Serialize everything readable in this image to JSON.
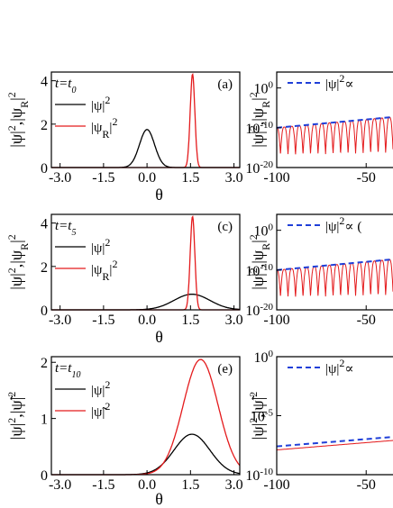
{
  "chart_data": [
    {
      "type": "line",
      "panel": "(a)",
      "time_label": "t=t",
      "time_sub": "0",
      "xlabel": "θ",
      "ylabel": "|ψ|²,|ψR|²",
      "xlim": [
        -3.3,
        3.2
      ],
      "ylim": [
        0,
        4.4
      ],
      "xticks": [
        "-3.0",
        "-1.5",
        "0.0",
        "1.5",
        "3.0"
      ],
      "yticks": [
        "0",
        "2",
        "4"
      ],
      "series": [
        {
          "name": "|ψ|²",
          "color": "#000000",
          "center": 0.0,
          "peak": 1.75,
          "sigma": 0.26
        },
        {
          "name": "|ψR|²",
          "color": "#e41a1c",
          "center": 1.57,
          "peak": 4.3,
          "sigma": 0.08
        }
      ]
    },
    {
      "type": "line",
      "panel": "(c)",
      "time_label": "t=t",
      "time_sub": "5",
      "xlabel": "θ",
      "ylabel": "|ψ|²,|ψR|²",
      "xlim": [
        -3.3,
        3.2
      ],
      "ylim": [
        0,
        4.4
      ],
      "xticks": [
        "-3.0",
        "-1.5",
        "0.0",
        "1.5",
        "3.0"
      ],
      "yticks": [
        "0",
        "2",
        "4"
      ],
      "series": [
        {
          "name": "|ψ|²",
          "color": "#000000",
          "center": 1.55,
          "peak": 0.72,
          "sigma": 0.62
        },
        {
          "name": "|ψR|²",
          "color": "#e41a1c",
          "center": 1.57,
          "peak": 4.3,
          "sigma": 0.08
        }
      ]
    },
    {
      "type": "line",
      "panel": "(e)",
      "time_label": "t=t",
      "time_sub": "10",
      "xlabel": "θ",
      "ylabel": "|ψ|²,|ψ̃|²",
      "xlim": [
        -3.3,
        3.2
      ],
      "ylim": [
        0,
        2.1
      ],
      "xticks": [
        "-3.0",
        "-1.5",
        "0.0",
        "1.5",
        "3.0"
      ],
      "yticks": [
        "0",
        "1",
        "2"
      ],
      "series": [
        {
          "name": "|ψ|²",
          "color": "#000000",
          "center": 1.55,
          "peak": 0.72,
          "sigma": 0.62
        },
        {
          "name": "|ψ̃|²",
          "color": "#e41a1c",
          "center": 1.85,
          "peak": 2.05,
          "sigma": 0.6
        }
      ]
    },
    {
      "type": "line",
      "ylabel": "|ψ|²,|ψR|²",
      "yscale": "log",
      "xlim": [
        -100,
        -35
      ],
      "ylim": [
        1e-20,
        10000.0
      ],
      "xticks": [
        "-100",
        "-50"
      ],
      "yticks": [
        "10",
        "10",
        "10"
      ],
      "ytick_exp": [
        "0",
        "-10",
        "-20"
      ],
      "legend": "|ψ|²∝",
      "dashed_level_exp": 0,
      "envelope_exp": [
        -10,
        -7.3
      ],
      "dip_exp": -18
    },
    {
      "type": "line",
      "ylabel": "|ψ|²,|ψR|²",
      "yscale": "log",
      "xlim": [
        -100,
        -35
      ],
      "ylim": [
        1e-20,
        10000.0
      ],
      "xticks": [
        "-100",
        "-50"
      ],
      "yticks": [
        "10",
        "10",
        "10"
      ],
      "ytick_exp": [
        "0",
        "-10",
        "-20"
      ],
      "legend": "|ψ|²∝ (",
      "dashed_level_exp": 0,
      "envelope_exp": [
        -10,
        -7.3
      ],
      "dip_exp": -18
    },
    {
      "type": "line",
      "ylabel": "|ψ|²,|ψ̃|²",
      "yscale": "log",
      "xlim": [
        -100,
        -35
      ],
      "ylim": [
        1e-10,
        1.0
      ],
      "xticks": [
        "-100",
        "-50"
      ],
      "yticks": [
        "10",
        "10",
        "10"
      ],
      "ytick_exp": [
        "0",
        "-5",
        "-10"
      ],
      "legend": "|ψ|²∝",
      "dashed_level_exp": -1.8,
      "envelope_exp": [
        -7.6,
        -6.8
      ]
    }
  ]
}
